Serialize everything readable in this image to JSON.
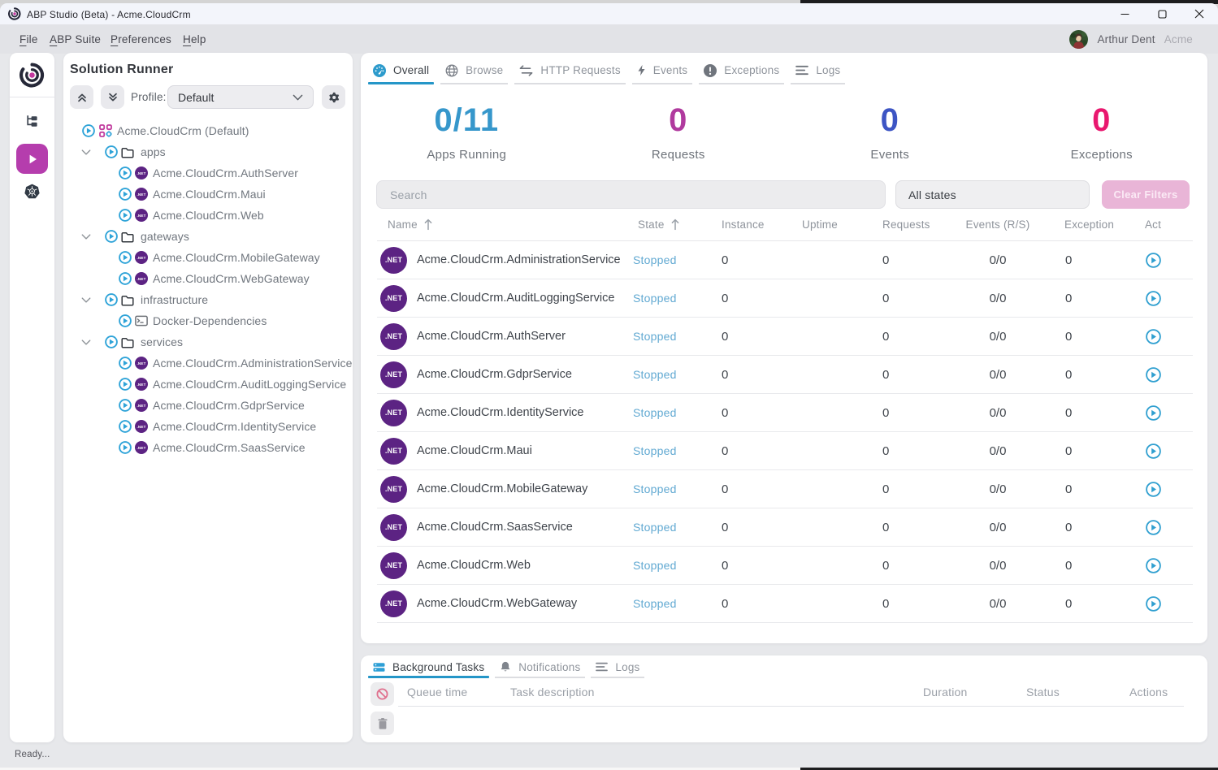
{
  "window": {
    "title": "ABP Studio (Beta) - Acme.CloudCrm"
  },
  "menubar": {
    "items": [
      {
        "label": "File",
        "accel": "F"
      },
      {
        "label": "ABP Suite",
        "accel": "A"
      },
      {
        "label": "Preferences",
        "accel": "P"
      },
      {
        "label": "Help",
        "accel": "H"
      }
    ],
    "user_name": "Arthur Dent",
    "user_org": "Acme"
  },
  "rail": {
    "items": [
      {
        "icon": "solution-explorer-icon"
      },
      {
        "icon": "solution-runner-icon",
        "active": true
      },
      {
        "icon": "kubernetes-icon"
      }
    ]
  },
  "solution_runner": {
    "title": "Solution Runner",
    "profile_label": "Profile:",
    "profile_value": "Default",
    "tree": [
      {
        "level": 0,
        "type": "solution",
        "label": "Acme.CloudCrm (Default)"
      },
      {
        "level": 1,
        "type": "folder",
        "label": "apps",
        "expanded": true
      },
      {
        "level": 2,
        "type": "dotnet",
        "label": "Acme.CloudCrm.AuthServer"
      },
      {
        "level": 2,
        "type": "dotnet",
        "label": "Acme.CloudCrm.Maui"
      },
      {
        "level": 2,
        "type": "dotnet",
        "label": "Acme.CloudCrm.Web"
      },
      {
        "level": 1,
        "type": "folder",
        "label": "gateways",
        "expanded": true
      },
      {
        "level": 2,
        "type": "dotnet",
        "label": "Acme.CloudCrm.MobileGateway"
      },
      {
        "level": 2,
        "type": "dotnet",
        "label": "Acme.CloudCrm.WebGateway"
      },
      {
        "level": 1,
        "type": "folder",
        "label": "infrastructure",
        "expanded": true
      },
      {
        "level": 2,
        "type": "terminal",
        "label": "Docker-Dependencies"
      },
      {
        "level": 1,
        "type": "folder",
        "label": "services",
        "expanded": true
      },
      {
        "level": 2,
        "type": "dotnet",
        "label": "Acme.CloudCrm.AdministrationService"
      },
      {
        "level": 2,
        "type": "dotnet",
        "label": "Acme.CloudCrm.AuditLoggingService"
      },
      {
        "level": 2,
        "type": "dotnet",
        "label": "Acme.CloudCrm.GdprService"
      },
      {
        "level": 2,
        "type": "dotnet",
        "label": "Acme.CloudCrm.IdentityService"
      },
      {
        "level": 2,
        "type": "dotnet",
        "label": "Acme.CloudCrm.SaasService"
      }
    ],
    "net_badge": ".NET"
  },
  "main": {
    "tabs": [
      {
        "label": "Overall",
        "icon": "dashboard-icon",
        "active": true
      },
      {
        "label": "Browse",
        "icon": "globe-icon"
      },
      {
        "label": "HTTP Requests",
        "icon": "arrows-icon"
      },
      {
        "label": "Events",
        "icon": "lightning-icon"
      },
      {
        "label": "Exceptions",
        "icon": "exclamation-icon"
      },
      {
        "label": "Logs",
        "icon": "lines-icon"
      }
    ],
    "stats": [
      {
        "value": "0/11",
        "label": "Apps Running",
        "color": "#3697cb"
      },
      {
        "value": "0",
        "label": "Requests",
        "color": "#b03a9e"
      },
      {
        "value": "0",
        "label": "Events",
        "color": "#3d55c4"
      },
      {
        "value": "0",
        "label": "Exceptions",
        "color": "#e9186f"
      }
    ],
    "filters": {
      "search_placeholder": "Search",
      "state_filter_value": "All states",
      "clear_button": "Clear Filters"
    },
    "table": {
      "columns": [
        "Name",
        "State",
        "Instance",
        "Uptime",
        "Requests",
        "Events (R/S)",
        "Exceptions",
        "Actions"
      ],
      "rows": [
        {
          "name": "Acme.CloudCrm.AdministrationService",
          "state": "Stopped",
          "instance": "0",
          "uptime": "",
          "requests": "0",
          "events": "0/0",
          "exceptions": "0"
        },
        {
          "name": "Acme.CloudCrm.AuditLoggingService",
          "state": "Stopped",
          "instance": "0",
          "uptime": "",
          "requests": "0",
          "events": "0/0",
          "exceptions": "0"
        },
        {
          "name": "Acme.CloudCrm.AuthServer",
          "state": "Stopped",
          "instance": "0",
          "uptime": "",
          "requests": "0",
          "events": "0/0",
          "exceptions": "0"
        },
        {
          "name": "Acme.CloudCrm.GdprService",
          "state": "Stopped",
          "instance": "0",
          "uptime": "",
          "requests": "0",
          "events": "0/0",
          "exceptions": "0"
        },
        {
          "name": "Acme.CloudCrm.IdentityService",
          "state": "Stopped",
          "instance": "0",
          "uptime": "",
          "requests": "0",
          "events": "0/0",
          "exceptions": "0"
        },
        {
          "name": "Acme.CloudCrm.Maui",
          "state": "Stopped",
          "instance": "0",
          "uptime": "",
          "requests": "0",
          "events": "0/0",
          "exceptions": "0"
        },
        {
          "name": "Acme.CloudCrm.MobileGateway",
          "state": "Stopped",
          "instance": "0",
          "uptime": "",
          "requests": "0",
          "events": "0/0",
          "exceptions": "0"
        },
        {
          "name": "Acme.CloudCrm.SaasService",
          "state": "Stopped",
          "instance": "0",
          "uptime": "",
          "requests": "0",
          "events": "0/0",
          "exceptions": "0"
        },
        {
          "name": "Acme.CloudCrm.Web",
          "state": "Stopped",
          "instance": "0",
          "uptime": "",
          "requests": "0",
          "events": "0/0",
          "exceptions": "0"
        },
        {
          "name": "Acme.CloudCrm.WebGateway",
          "state": "Stopped",
          "instance": "0",
          "uptime": "",
          "requests": "0",
          "events": "0/0",
          "exceptions": "0"
        }
      ]
    }
  },
  "bottom_panel": {
    "tabs": [
      {
        "label": "Background Tasks",
        "icon": "stack-icon",
        "active": true
      },
      {
        "label": "Notifications",
        "icon": "bell-icon"
      },
      {
        "label": "Logs",
        "icon": "lines-icon"
      }
    ],
    "columns": [
      "Queue time",
      "Task description",
      "Duration",
      "Status",
      "Actions"
    ]
  },
  "statusbar": {
    "text": "Ready..."
  },
  "colors": {
    "accent_blue": "#2596c8",
    "brand_magenta": "#b53dad",
    "net_purple": "#5c2383",
    "stopped_blue": "#61a9d2"
  }
}
